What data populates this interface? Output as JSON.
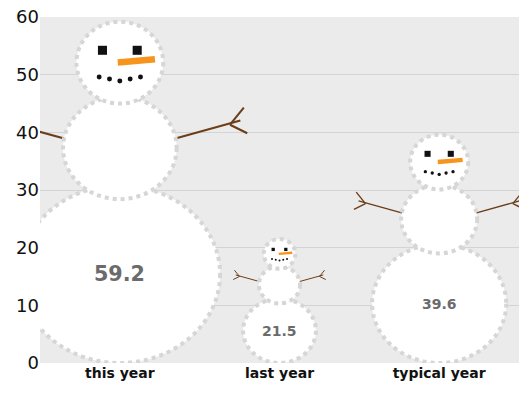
{
  "chart_data": {
    "type": "pictograph",
    "categories": [
      "this year",
      "last year",
      "typical year"
    ],
    "values": [
      59.2,
      21.5,
      39.6
    ],
    "ylim": [
      0,
      60
    ],
    "yticks": [
      0,
      10,
      20,
      30,
      40,
      50,
      60
    ],
    "grid": true,
    "data_labels": true
  }
}
